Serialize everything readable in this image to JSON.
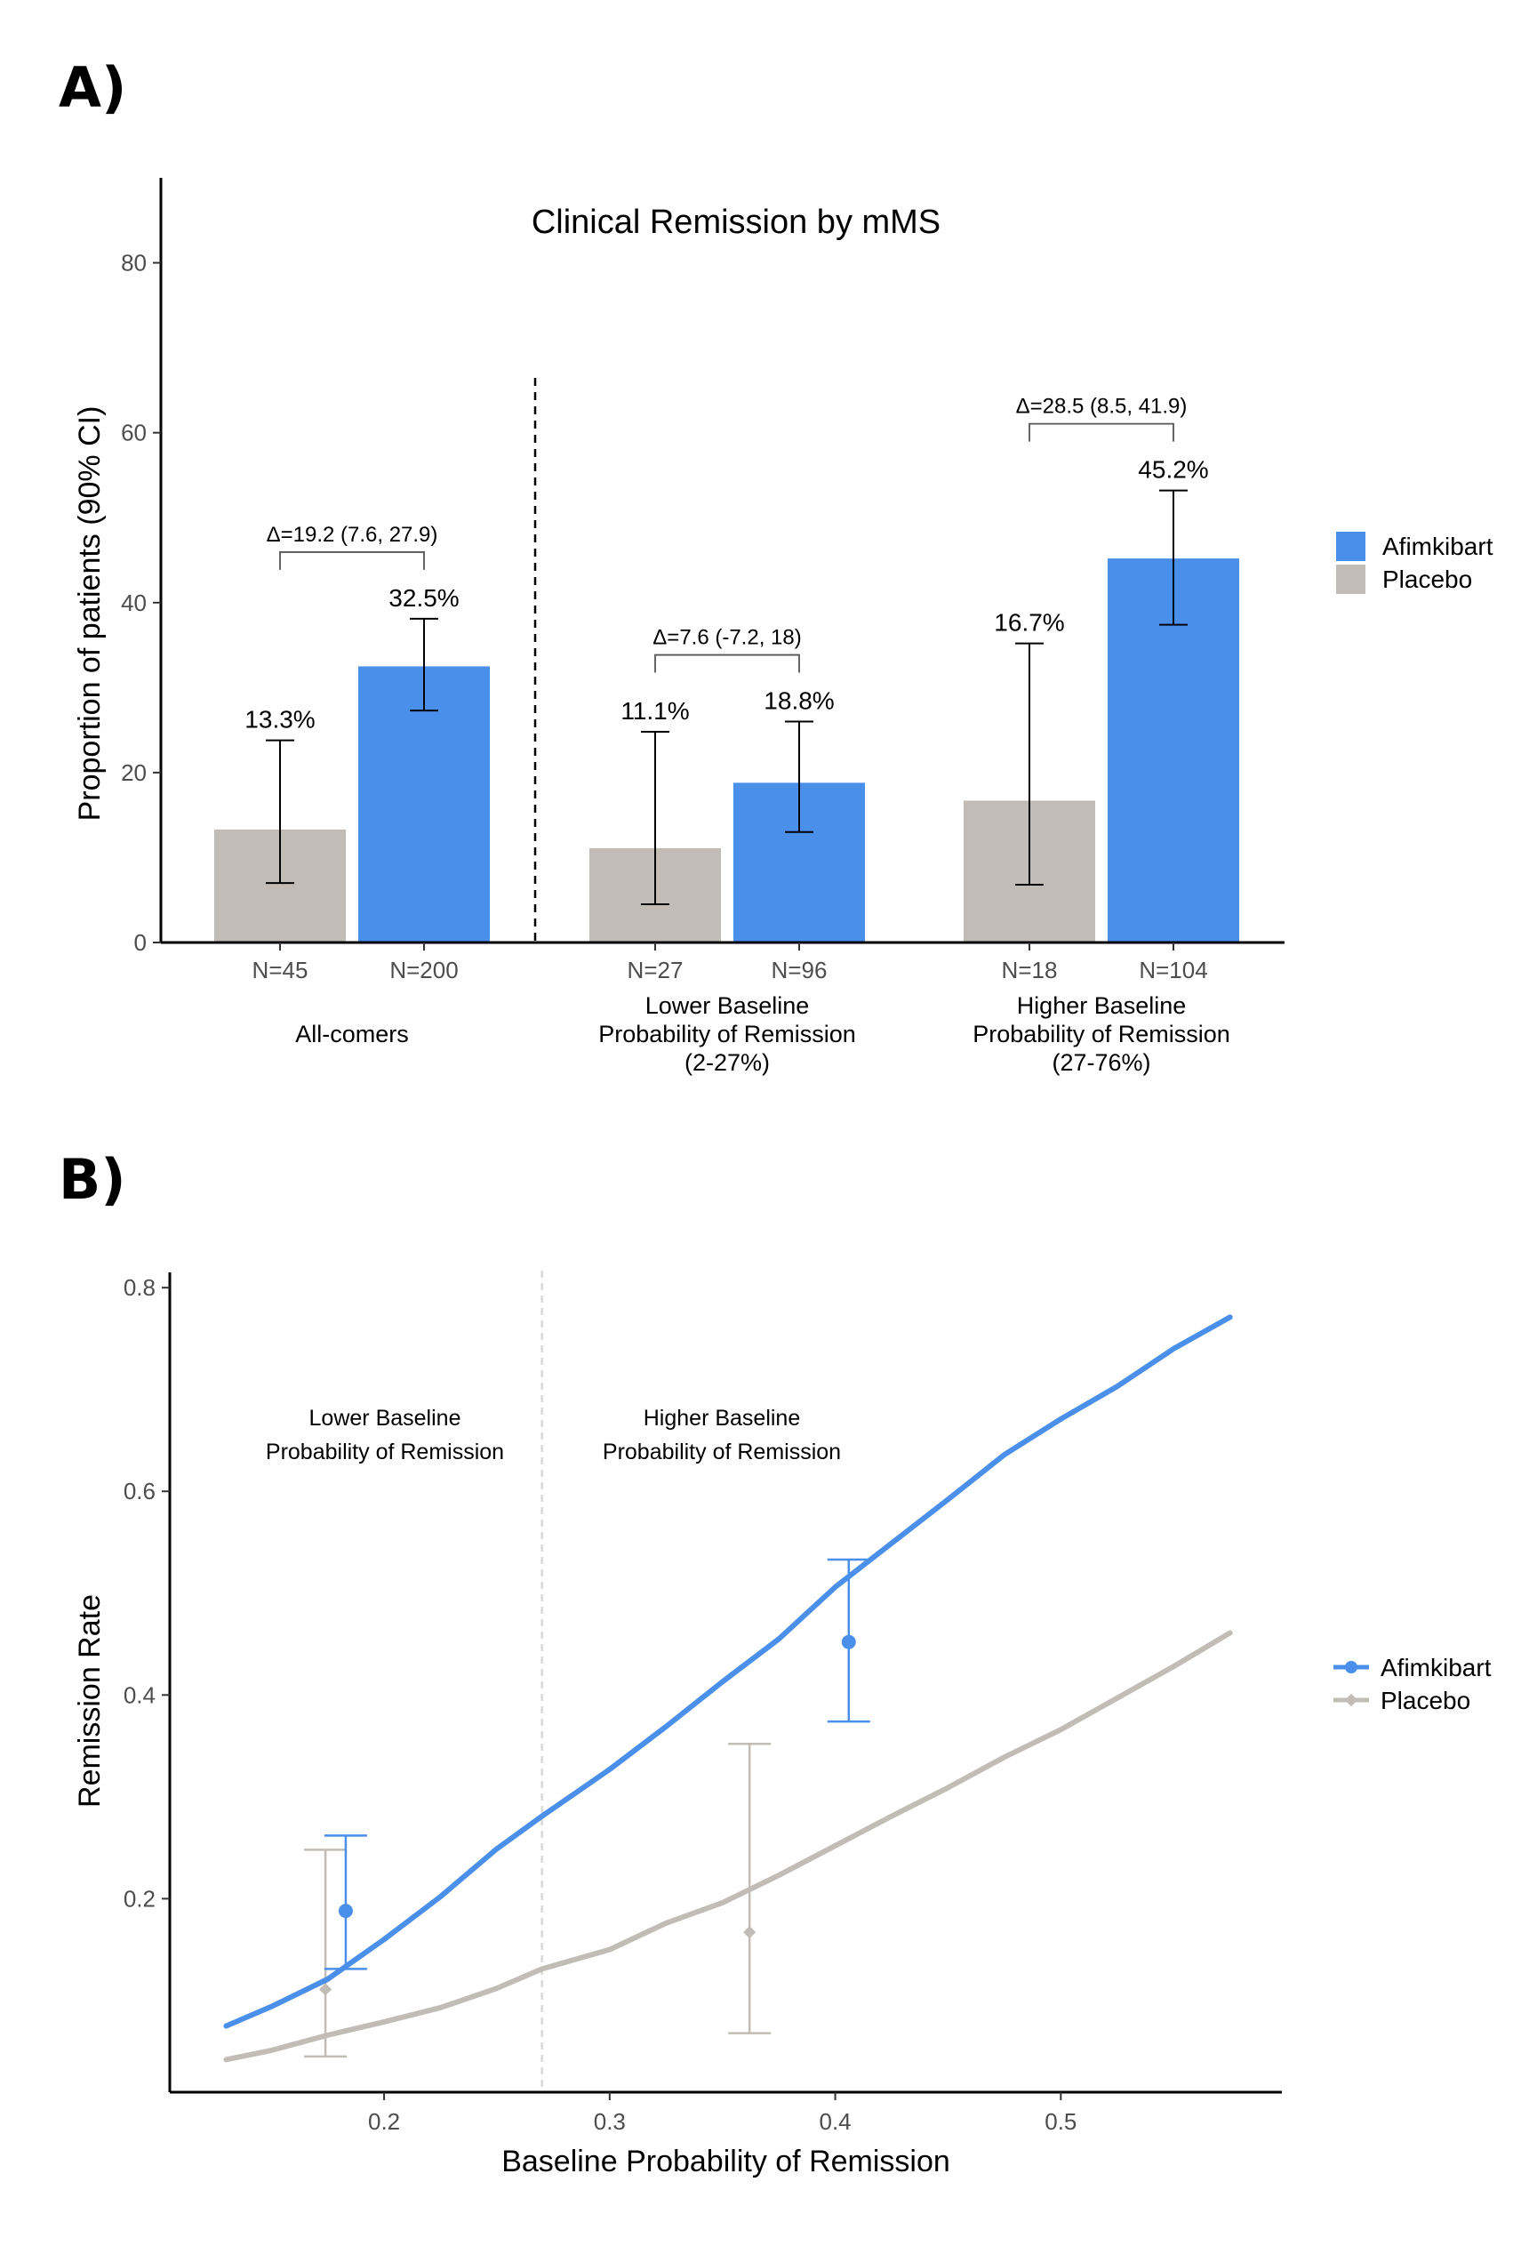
{
  "panels": {
    "a_label": "A)",
    "b_label": "B)"
  },
  "colors": {
    "afimkibart": "#4a8fea",
    "placebo": "#c2bcb6",
    "axis": "#000000",
    "tick_text": "#4d4d4d",
    "divider_b": "#d9d9d9"
  },
  "chart_data": [
    {
      "type": "bar",
      "title": "Clinical Remission by mMS",
      "ylabel": "Proportion of patients (90% CI)",
      "xlabel": "",
      "ylim": [
        0,
        90
      ],
      "yticks": [
        "0",
        "20",
        "40",
        "60",
        "80"
      ],
      "legend": {
        "position": "right",
        "entries": [
          {
            "name": "Afimkibart",
            "color": "#4a8fea"
          },
          {
            "name": "Placebo",
            "color": "#c2bcb6"
          }
        ]
      },
      "groups": [
        {
          "label": "All-comers",
          "bars": [
            {
              "series": "Placebo",
              "n_label": "N=45",
              "value": 13.3,
              "value_label": "13.3%",
              "ci": [
                7.0,
                23.8
              ]
            },
            {
              "series": "Afimkibart",
              "n_label": "N=200",
              "value": 32.5,
              "value_label": "32.5%",
              "ci": [
                27.3,
                38.1
              ]
            }
          ],
          "delta_label": "Δ=19.2 (7.6, 27.9)"
        },
        {
          "label": "Lower Baseline\nProbability of Remission\n(2-27%)",
          "bars": [
            {
              "series": "Placebo",
              "n_label": "N=27",
              "value": 11.1,
              "value_label": "11.1%",
              "ci": [
                4.5,
                24.8
              ]
            },
            {
              "series": "Afimkibart",
              "n_label": "N=96",
              "value": 18.8,
              "value_label": "18.8%",
              "ci": [
                13.0,
                26.0
              ]
            }
          ],
          "delta_label": "Δ=7.6 (-7.2, 18)"
        },
        {
          "label": "Higher Baseline\nProbability of Remission\n(27-76%)",
          "bars": [
            {
              "series": "Placebo",
              "n_label": "N=18",
              "value": 16.7,
              "value_label": "16.7%",
              "ci": [
                6.8,
                35.2
              ]
            },
            {
              "series": "Afimkibart",
              "n_label": "N=104",
              "value": 45.2,
              "value_label": "45.2%",
              "ci": [
                37.4,
                53.2
              ]
            }
          ],
          "delta_label": "Δ=28.5 (8.5, 41.9)"
        }
      ]
    },
    {
      "type": "line",
      "title": "",
      "xlabel": "Baseline Probability of Remission",
      "ylabel": "Remission Rate",
      "xlim": [
        0.105,
        0.598
      ],
      "ylim": [
        0.01,
        0.815
      ],
      "xticks": [
        "0.2",
        "0.3",
        "0.4",
        "0.5"
      ],
      "yticks": [
        "0.2",
        "0.4",
        "0.6",
        "0.8"
      ],
      "divider_x": 0.27,
      "region_labels": [
        {
          "text": "Lower Baseline\nProbability of Remission",
          "x": 0.19
        },
        {
          "text": "Higher Baseline\nProbability of Remission",
          "x": 0.34
        }
      ],
      "legend": {
        "position": "right",
        "entries": [
          {
            "name": "Afimkibart",
            "color": "#4a8fea"
          },
          {
            "name": "Placebo",
            "color": "#c2bcb6"
          }
        ]
      },
      "series": [
        {
          "name": "Afimkibart",
          "color": "#4a8fea",
          "curve": {
            "x": [
              0.13,
              0.15,
              0.175,
              0.2,
              0.225,
              0.25,
              0.27,
              0.3,
              0.325,
              0.35,
              0.375,
              0.4,
              0.425,
              0.45,
              0.475,
              0.5,
              0.525,
              0.55,
              0.575
            ],
            "y": [
              0.075,
              0.094,
              0.121,
              0.16,
              0.202,
              0.249,
              0.281,
              0.327,
              0.369,
              0.413,
              0.455,
              0.506,
              0.549,
              0.592,
              0.636,
              0.671,
              0.703,
              0.74,
              0.771
            ]
          },
          "points": [
            {
              "x": 0.183,
              "y": 0.188,
              "ci": [
                0.131,
                0.262
              ]
            },
            {
              "x": 0.406,
              "y": 0.452,
              "ci": [
                0.374,
                0.533
              ]
            }
          ]
        },
        {
          "name": "Placebo",
          "color": "#c2bcb6",
          "curve": {
            "x": [
              0.13,
              0.15,
              0.175,
              0.2,
              0.225,
              0.25,
              0.27,
              0.3,
              0.325,
              0.35,
              0.375,
              0.4,
              0.425,
              0.45,
              0.475,
              0.5,
              0.525,
              0.55,
              0.575
            ],
            "y": [
              0.042,
              0.051,
              0.066,
              0.079,
              0.093,
              0.112,
              0.131,
              0.15,
              0.176,
              0.196,
              0.223,
              0.252,
              0.281,
              0.309,
              0.339,
              0.366,
              0.397,
              0.428,
              0.461
            ]
          },
          "points": [
            {
              "x": 0.174,
              "y": 0.111,
              "ci": [
                0.045,
                0.248
              ]
            },
            {
              "x": 0.362,
              "y": 0.167,
              "ci": [
                0.068,
                0.352
              ]
            }
          ]
        }
      ]
    }
  ]
}
